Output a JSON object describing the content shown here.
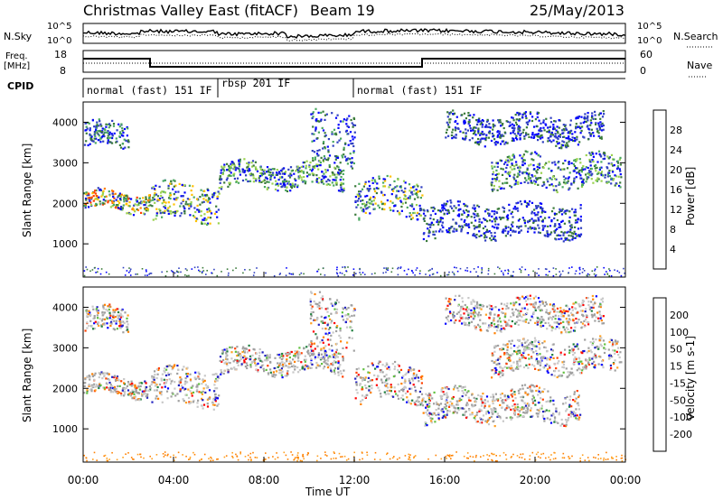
{
  "title": {
    "station": "Christmas Valley East (fitACF)",
    "beam": "Beam 19",
    "date": "25/May/2013"
  },
  "left_labels": {
    "nsky": "N.Sky",
    "freq_line1": "Freq.",
    "freq_line2": "[MHz]",
    "cpid": "CPID"
  },
  "right_labels": {
    "nsearch": "N.Search",
    "nave": "Nave"
  },
  "noise_panel": {
    "left_ticks": [
      "10^5",
      "10^0"
    ],
    "right_ticks": [
      "10^5",
      "10^0"
    ]
  },
  "freq_panel": {
    "left_ticks": [
      "18",
      "8"
    ],
    "right_ticks": [
      "60",
      "0"
    ]
  },
  "cpid_segments": [
    {
      "label": "normal (fast) 151 IF",
      "start_hour": 0,
      "end_hour": 6
    },
    {
      "label": "rbsp 201 IF",
      "start_hour": 6,
      "end_hour": 12
    },
    {
      "label": "normal (fast) 151 IF",
      "start_hour": 12,
      "end_hour": 24
    }
  ],
  "colors": {
    "power": [
      "#0000ff",
      "#2f3fc0",
      "#3a7a3a",
      "#4aa860",
      "#9ad250",
      "#ffc000",
      "#ff8000",
      "#ff4000",
      "#ff0000"
    ],
    "velocity": [
      "#ff0000",
      "#ff4000",
      "#ff8000",
      "#ffa020",
      "#c8c8c8",
      "#a0a0a0",
      "#60c040",
      "#208040",
      "#2020c0",
      "#0000ff"
    ]
  },
  "chart_data": [
    {
      "type": "heatmap",
      "name": "power",
      "xlabel": "",
      "ylabel": "Slant Range [km]",
      "yticks": [
        1000,
        2000,
        3000,
        4000
      ],
      "ylim": [
        180,
        4500
      ],
      "xlim": [
        0,
        24
      ],
      "colorbar_label": "Power [dB]",
      "colorbar_ticks": [
        "4",
        "8",
        "12",
        "16",
        "20",
        "24",
        "28"
      ]
    },
    {
      "type": "heatmap",
      "name": "velocity",
      "xlabel": "Time UT",
      "ylabel": "Slant Range [km]",
      "yticks": [
        1000,
        2000,
        3000,
        4000
      ],
      "ylim": [
        180,
        4500
      ],
      "xlim": [
        0,
        24
      ],
      "xticks": [
        "00:00",
        "04:00",
        "08:00",
        "12:00",
        "16:00",
        "20:00",
        "00:00"
      ],
      "colorbar_label": "Velocity [m s-1]",
      "colorbar_ticks": [
        "200",
        "100",
        "50",
        "15",
        "-15",
        "-50",
        "-100",
        "-200"
      ]
    }
  ]
}
